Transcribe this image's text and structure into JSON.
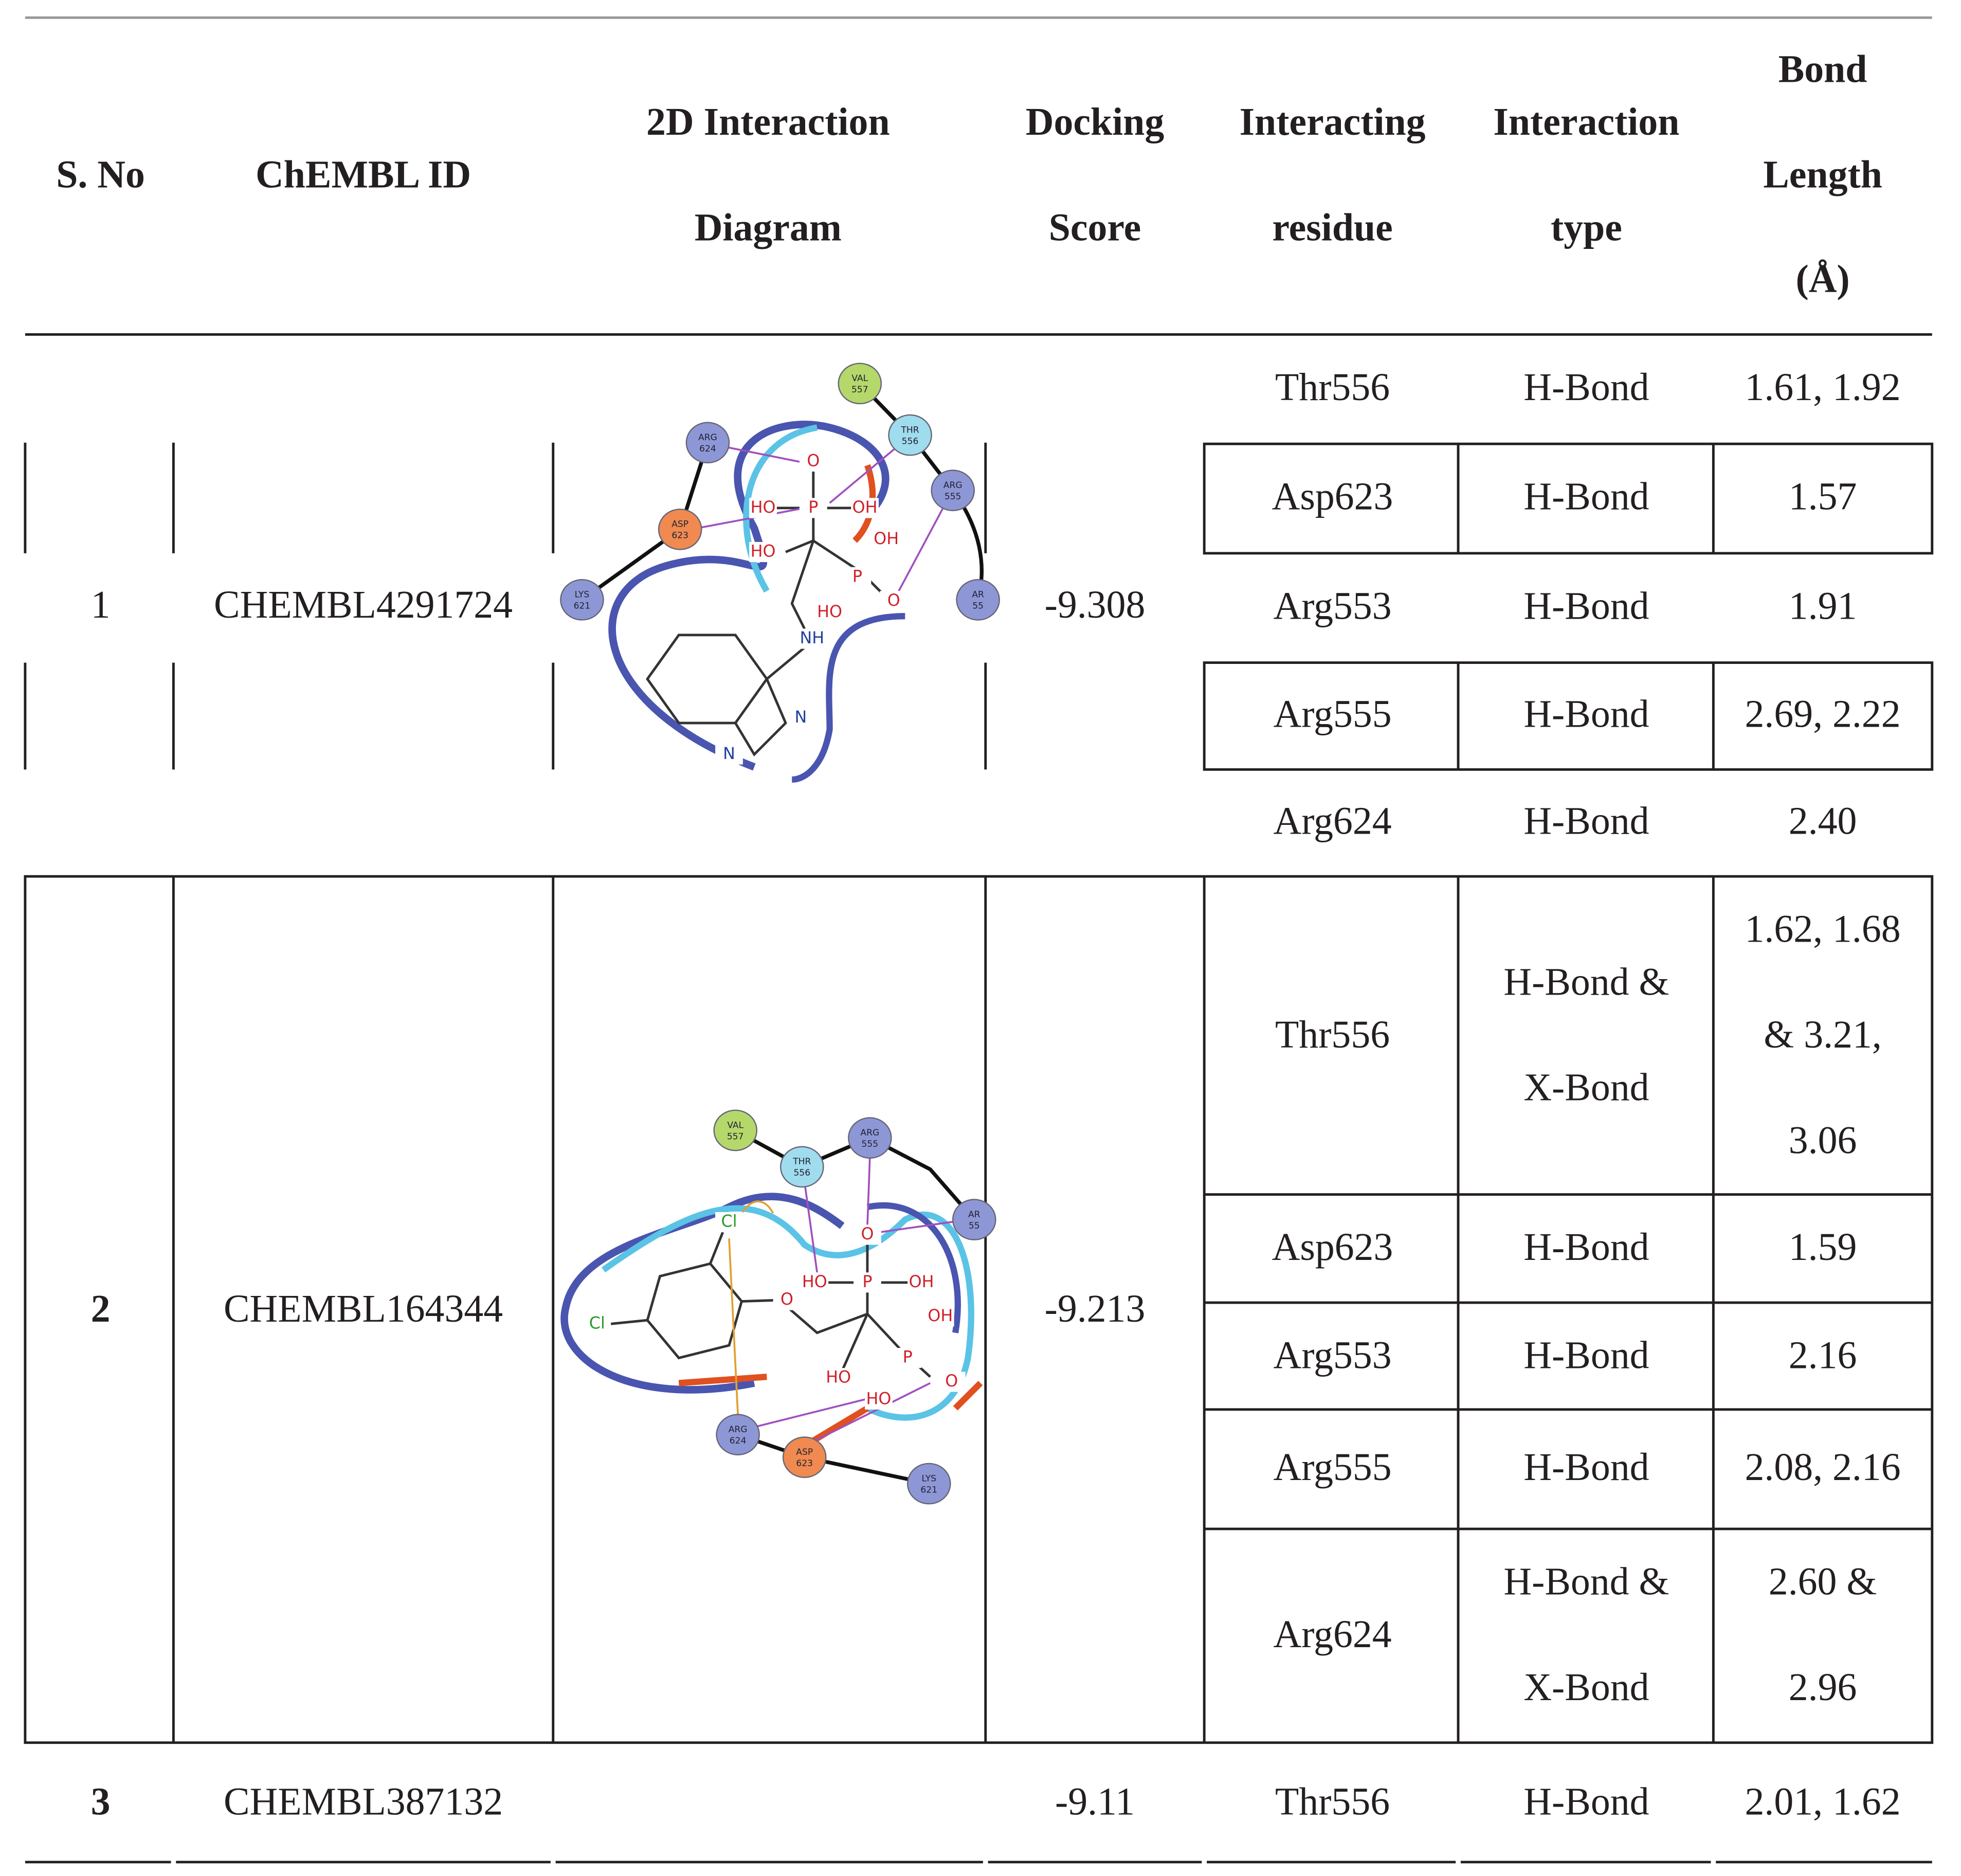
{
  "header": [
    [
      "S. No"
    ],
    [
      "ChEMBL ID"
    ],
    [
      "2D Interaction",
      "Diagram"
    ],
    [
      "Docking",
      "Score"
    ],
    [
      "Interacting",
      "residue"
    ],
    [
      "Interaction",
      "type"
    ],
    [
      "Bond",
      "Length",
      "(Å)"
    ]
  ],
  "rows": [
    {
      "sno": "1",
      "chembl_id": "CHEMBL4291724",
      "score": "-9.308",
      "diagram": {
        "residues": [
          [
            "VAL",
            "557"
          ],
          [
            "THR",
            "556"
          ],
          [
            "ARG",
            "555"
          ],
          [
            "ARG",
            "624"
          ],
          [
            "ASP",
            "623"
          ],
          [
            "LYS",
            "621"
          ],
          [
            "AR",
            "55"
          ]
        ],
        "atoms": [
          "HO",
          "P",
          "OH",
          "O",
          "HO",
          "OH",
          "P",
          "O",
          "HO",
          "NH",
          "N",
          "N"
        ]
      },
      "interactions": [
        {
          "residue": "Thr556",
          "type": [
            "H-Bond"
          ],
          "length": [
            "1.61, 1.92"
          ]
        },
        {
          "residue": "Asp623",
          "type": [
            "H-Bond"
          ],
          "length": [
            "1.57"
          ]
        },
        {
          "residue": "Arg553",
          "type": [
            "H-Bond"
          ],
          "length": [
            "1.91"
          ]
        },
        {
          "residue": "Arg555",
          "type": [
            "H-Bond"
          ],
          "length": [
            "2.69, 2.22"
          ]
        },
        {
          "residue": "Arg624",
          "type": [
            "H-Bond"
          ],
          "length": [
            "2.40"
          ]
        }
      ]
    },
    {
      "sno": "2",
      "chembl_id": "CHEMBL164344",
      "score": "-9.213",
      "diagram": {
        "residues": [
          [
            "VAL",
            "557"
          ],
          [
            "THR",
            "556"
          ],
          [
            "ARG",
            "555"
          ],
          [
            "AR",
            "55"
          ],
          [
            "ARG",
            "624"
          ],
          [
            "ASP",
            "623"
          ],
          [
            "LYS",
            "621"
          ]
        ],
        "atoms": [
          "Cl",
          "Cl",
          "O",
          "O",
          "HO",
          "P",
          "OH",
          "OH",
          "P",
          "O",
          "HO",
          "HO"
        ]
      },
      "interactions": [
        {
          "residue": "Thr556",
          "type": [
            "H-Bond &",
            "X-Bond"
          ],
          "length": [
            "1.62, 1.68",
            "& 3.21,",
            "3.06"
          ]
        },
        {
          "residue": "Asp623",
          "type": [
            "H-Bond"
          ],
          "length": [
            "1.59"
          ]
        },
        {
          "residue": "Arg553",
          "type": [
            "H-Bond"
          ],
          "length": [
            "2.16"
          ]
        },
        {
          "residue": "Arg555",
          "type": [
            "H-Bond"
          ],
          "length": [
            "2.08, 2.16"
          ]
        },
        {
          "residue": "Arg624",
          "type": [
            "H-Bond &",
            "X-Bond"
          ],
          "length": [
            "2.60 &",
            "2.96"
          ]
        }
      ]
    },
    {
      "sno": "3",
      "chembl_id": "CHEMBL387132",
      "score": "-9.11",
      "interactions": [
        {
          "residue": "Thr556",
          "type": [
            "H-Bond"
          ],
          "length": [
            "2.01, 1.62"
          ]
        }
      ]
    }
  ]
}
